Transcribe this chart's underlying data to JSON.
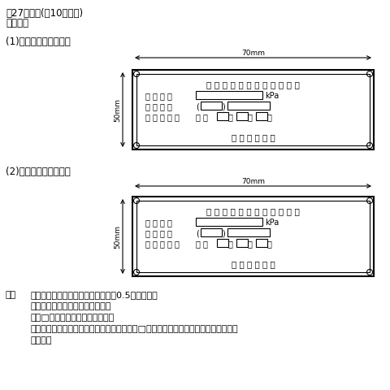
{
  "title1": "第27号様式(第10条関係)",
  "title2": "検査済証",
  "section1_label": "(1)　少量危険物タンク",
  "section2_label": "(2)　指定可燃物タンク",
  "dim_label_70": "70mm",
  "dim_label_50": "50mm",
  "plate1_title": "少 量 危 険 物 タ ン ク 検 査 済 証",
  "plate2_title": "指 定 可 燃 物 タ ン ク 検 査 済 証",
  "row1": "検 査 圧 力",
  "row2": "検 査 番 号",
  "row3": "検 査 年 月 日",
  "kpa": "kPa",
  "heisei": "平 成",
  "nen": "年",
  "tsuki": "月",
  "hi": "日",
  "osaka": "大 阪 市 消 防 局",
  "notes_header": "備考",
  "note1": "１　材質は、真ちゅうとし、厚さは0.5㎜とする。",
  "note2": "２　（　）内は、所属名とする。",
  "note3": "３　□内の文字は、刻印とする。",
  "note4": "４　エッチング加工とし、縁取り、文字及び□内は、地色、その他の部分は、黒色と",
  "note4b": "　する。",
  "bg_color": "#ffffff",
  "text_color": "#000000"
}
